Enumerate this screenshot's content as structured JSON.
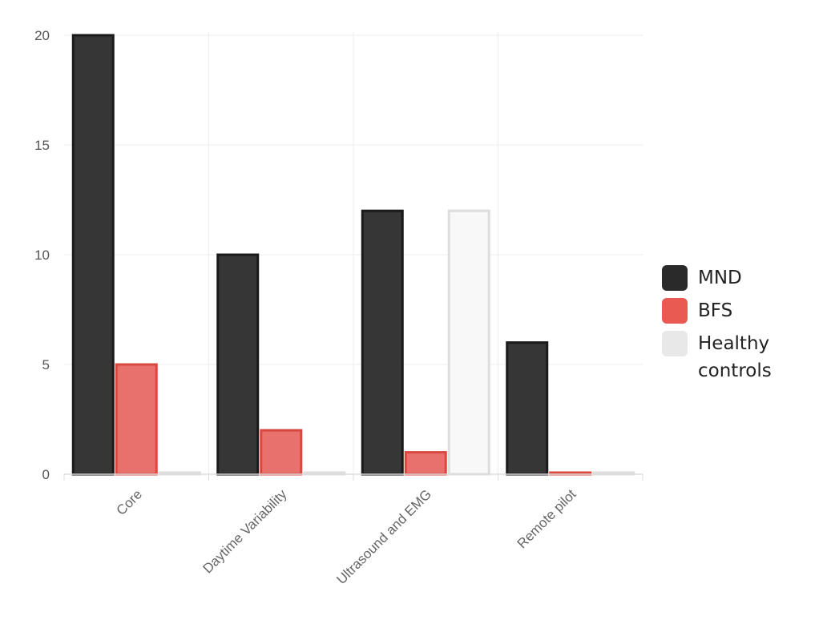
{
  "chart_data": {
    "type": "bar",
    "categories": [
      "Core",
      "Daytime Variability",
      "Ultrasound and EMG",
      "Remote pilot"
    ],
    "series": [
      {
        "name": "MND",
        "values": [
          20,
          10,
          12,
          6
        ],
        "fill": "#363636",
        "stroke": "#1a1a1a"
      },
      {
        "name": "BFS",
        "values": [
          5,
          2,
          1,
          0
        ],
        "fill": "#e8716d",
        "stroke": "#d9483f"
      },
      {
        "name": "Healthy controls",
        "values": [
          0,
          0,
          12,
          0
        ],
        "fill": "#f8f8f8",
        "stroke": "#dddddd"
      }
    ],
    "ylim": [
      0,
      20
    ],
    "yticks": [
      0,
      5,
      10,
      15,
      20
    ],
    "grid": true,
    "legend_position": "right",
    "legend_colors": [
      "#2a2a2a",
      "#e85a52",
      "#e8e8e8"
    ]
  }
}
